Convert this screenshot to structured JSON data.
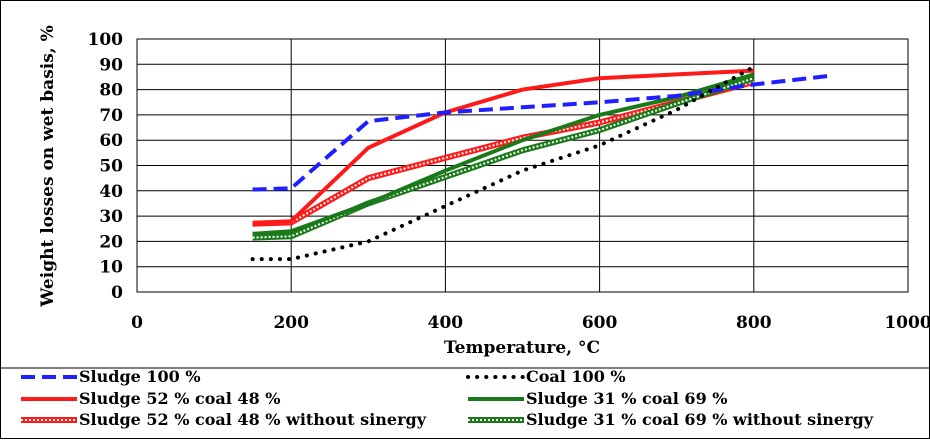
{
  "chart_data": {
    "type": "line",
    "title": "",
    "xlabel": "Temperature, °C",
    "ylabel": "Weight losses on wet basis, %",
    "xlim": [
      0,
      1000
    ],
    "ylim": [
      0,
      100
    ],
    "x_ticks": [
      "0",
      "200",
      "400",
      "600",
      "800",
      "1000"
    ],
    "y_ticks": [
      "0",
      "10",
      "20",
      "30",
      "40",
      "50",
      "60",
      "70",
      "80",
      "90",
      "100"
    ],
    "grid": true,
    "legend_position": "bottom",
    "series": [
      {
        "name": "Sludge 100 %",
        "color": "#1f1fff",
        "style": "dashed",
        "x": [
          150,
          200,
          300,
          400,
          500,
          600,
          700,
          800,
          900
        ],
        "y": [
          40.5,
          41,
          67.5,
          71,
          73,
          75,
          77.5,
          82,
          85.5
        ]
      },
      {
        "name": "Coal 100 %",
        "color": "#000000",
        "style": "dotted",
        "x": [
          150,
          200,
          300,
          400,
          500,
          600,
          700,
          800
        ],
        "y": [
          13,
          13,
          20,
          34,
          48,
          58,
          72,
          89
        ]
      },
      {
        "name": "Sludge 52 % coal 48 %",
        "color": "#ff1a1a",
        "style": "solid",
        "x": [
          150,
          200,
          300,
          400,
          500,
          600,
          700,
          800
        ],
        "y": [
          27,
          28,
          57,
          71,
          80,
          84.5,
          86,
          87.5
        ]
      },
      {
        "name": "Sludge 31 % coal 69 %",
        "color": "#1a7a1a",
        "style": "solid",
        "x": [
          150,
          200,
          300,
          400,
          500,
          600,
          700,
          800
        ],
        "y": [
          23,
          24,
          35,
          48,
          60,
          70,
          77,
          86
        ]
      },
      {
        "name": "Sludge 52 % coal 48 % without sinergy",
        "color": "#ff1a1a",
        "style": "double",
        "x": [
          150,
          200,
          300,
          400,
          500,
          600,
          700,
          800
        ],
        "y": [
          27,
          27.5,
          45,
          53,
          61,
          67,
          75,
          83
        ]
      },
      {
        "name": "Sludge 31 % coal 69 % without sinergy",
        "color": "#1a7a1a",
        "style": "double",
        "x": [
          150,
          200,
          300,
          400,
          500,
          600,
          700,
          800
        ],
        "y": [
          21.5,
          22,
          35,
          45.5,
          56,
          64,
          74.5,
          84.5
        ]
      }
    ]
  }
}
